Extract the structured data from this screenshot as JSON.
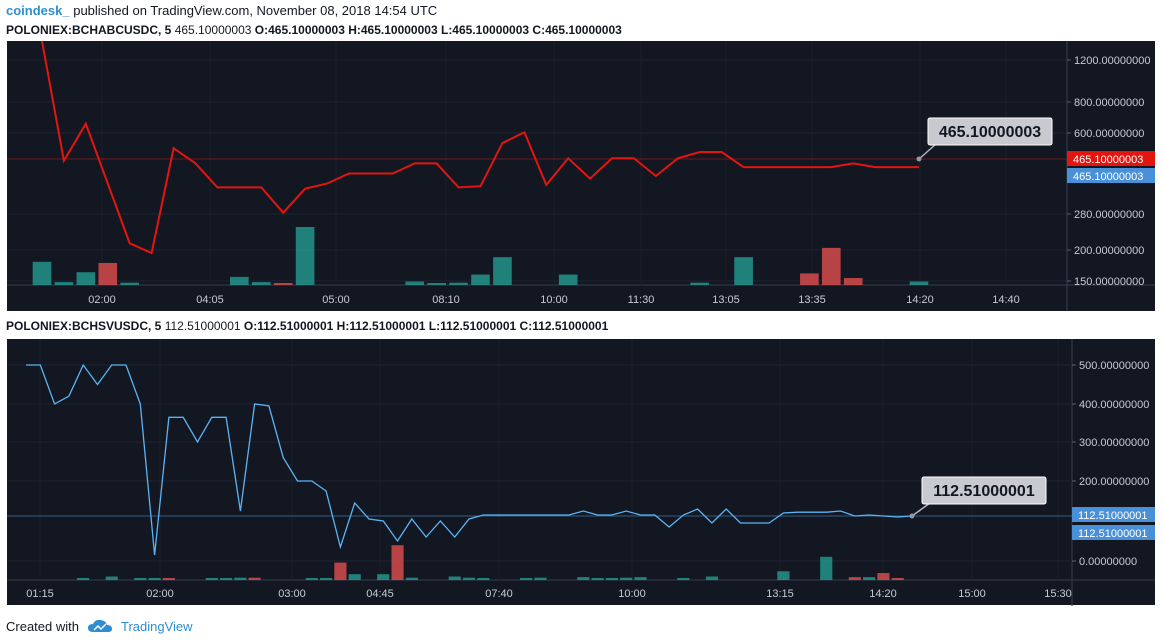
{
  "header": {
    "brand": "coindesk_",
    "published": "published on TradingView.com, November 08, 2018 14:54 UTC"
  },
  "footer": {
    "created_with": "Created with",
    "tradingview": "TradingView"
  },
  "colors": {
    "panel_bg": "#131722",
    "red_line": "#e3150f",
    "blue_line": "#5ab4f5",
    "vol_up": "#26a69a",
    "vol_down": "#ef5350",
    "tag_blue": "#4a90d9",
    "tag_red": "#e3150f"
  },
  "chart_data": [
    {
      "type": "line",
      "symbol": "POLONIEX:BCHABCUSDC, 5",
      "ohlc_values": "465.10000003",
      "o": "O:465.10000003",
      "h": "H:465.10000003",
      "l": "L:465.10000003",
      "c": "C:465.10000003",
      "x_ticks": [
        "02:00",
        "04:05",
        "05:00",
        "08:10",
        "10:00",
        "11:30",
        "13:05",
        "13:35",
        "14:20",
        "14:40"
      ],
      "y_ticks": [
        "1200.00000000",
        "800.00000000",
        "600.00000000",
        "280.00000000",
        "200.00000000",
        "150.00000000"
      ],
      "y_tick_values": [
        1200,
        800,
        600,
        280,
        200,
        150
      ],
      "last_value": "465.10000003",
      "last_value_tag_1": "465.10000003",
      "last_value_tag_2": "465.10000003",
      "values": [
        1500,
        490,
        660,
        400,
        215,
        195,
        540,
        480,
        385,
        385,
        385,
        285,
        380,
        400,
        440,
        440,
        440,
        480,
        480,
        385,
        390,
        560,
        605,
        395,
        500,
        420,
        500,
        500,
        430,
        500,
        525,
        525,
        465.1,
        465.1,
        465.1,
        465.1,
        465.1,
        480,
        465.1,
        465.1,
        465.1
      ],
      "volumes": [
        0.4,
        0.05,
        0.22,
        0.38,
        0.04,
        0,
        0,
        0,
        0,
        0.14,
        0.05,
        0.03,
        1.0,
        0,
        0,
        0,
        0,
        0.06,
        0.03,
        0.04,
        0.18,
        0.48,
        0,
        0,
        0.18,
        0,
        0,
        0,
        0,
        0,
        0.04,
        0,
        0.48,
        0,
        0,
        0.2,
        0.64,
        0.12,
        0,
        0,
        0.06
      ],
      "volume_up": [
        true,
        true,
        true,
        false,
        true,
        true,
        true,
        true,
        true,
        true,
        true,
        false,
        true,
        true,
        true,
        true,
        true,
        true,
        true,
        true,
        true,
        true,
        false,
        false,
        true,
        true,
        true,
        true,
        true,
        true,
        true,
        true,
        true,
        true,
        false,
        false,
        false,
        false,
        true,
        true,
        true
      ]
    },
    {
      "type": "line",
      "symbol": "POLONIEX:BCHSVUSDC, 5",
      "ohlc_values": "112.51000001",
      "o": "O:112.51000001",
      "h": "H:112.51000001",
      "l": "L:112.51000001",
      "c": "C:112.51000001",
      "x_ticks": [
        "01:15",
        "02:00",
        "03:00",
        "04:45",
        "07:40",
        "10:00",
        "13:15",
        "14:20",
        "15:00",
        "15:30"
      ],
      "y_ticks": [
        "500.00000000",
        "400.00000000",
        "300.00000000",
        "200.00000000",
        "0.00000000"
      ],
      "y_tick_values": [
        500,
        400,
        300,
        200,
        0
      ],
      "last_value": "112.51000001",
      "last_value_tag_1": "112.51000001",
      "last_value_tag_2": "112.51000001",
      "values": [
        500,
        500,
        400,
        420,
        500,
        450,
        500,
        500,
        400,
        15,
        365,
        365,
        300,
        365,
        365,
        125,
        400,
        395,
        260,
        200,
        200,
        175,
        35,
        145,
        105,
        100,
        50,
        105,
        60,
        100,
        60,
        105,
        115,
        115,
        115,
        115,
        115,
        115,
        115,
        125,
        115,
        115,
        125,
        115,
        115,
        85,
        115,
        130,
        95,
        130,
        95,
        95,
        95,
        120,
        122,
        122,
        122,
        125,
        112.5,
        115,
        112.5,
        110,
        112.51
      ]
    }
  ]
}
